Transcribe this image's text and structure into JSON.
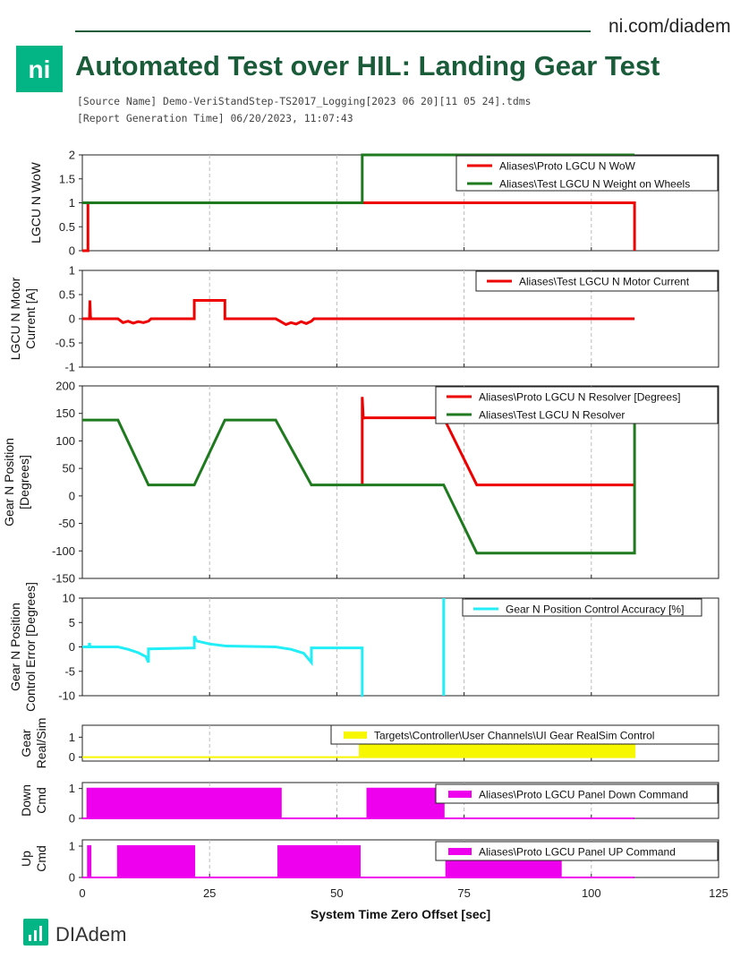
{
  "header": {
    "site": "ni.com/diadem",
    "logo_text": "ni",
    "title": "Automated Test over HIL: Landing Gear Test",
    "source_name": "[Source Name] Demo-VeriStandStep-TS2017_Logging[2023 06 20][11 05 24].tdms",
    "report_time": "[Report Generation Time] 06/20/2023, 11:07:43"
  },
  "footer": {
    "brand": "DIAdem"
  },
  "colors": {
    "brand_green": "#1a5c3a",
    "logo_green": "#03b585",
    "red": "#ee0000",
    "green": "#1f7a1f",
    "cyan": "#22eef7",
    "yellow": "#f7f700",
    "magenta": "#ee00ee"
  },
  "chart_data": [
    {
      "type": "line",
      "ylabel": "LGCU N WoW",
      "ylim": [
        0,
        2
      ],
      "yticks": [
        0,
        0.5,
        1,
        1.5,
        2
      ],
      "xlim": [
        0,
        125
      ],
      "series": [
        {
          "name": "Aliases\\Proto LGCU N WoW",
          "color": "#ee0000",
          "x": [
            0,
            1.1,
            1.1,
            108.5,
            108.5
          ],
          "y": [
            0,
            0,
            1,
            1,
            0
          ]
        },
        {
          "name": "Aliases\\Test LGCU N Weight on Wheels",
          "color": "#1f7a1f",
          "x": [
            0,
            55,
            55,
            108.5
          ],
          "y": [
            1,
            1,
            2,
            2
          ]
        }
      ]
    },
    {
      "type": "line",
      "ylabel": "LGCU N Motor Current [A]",
      "ylim": [
        -1,
        1
      ],
      "yticks": [
        -1,
        -0.5,
        0,
        0.5,
        1
      ],
      "xlim": [
        0,
        125
      ],
      "series": [
        {
          "name": "Aliases\\Test LGCU N Motor Current",
          "color": "#ee0000",
          "x": [
            0,
            1.4,
            1.5,
            1.6,
            1.7,
            2,
            7,
            8,
            9,
            10,
            11,
            12,
            13,
            13.5,
            22,
            22,
            28,
            28,
            38,
            39,
            40,
            41,
            42,
            43,
            44,
            45,
            45.5,
            108.5
          ],
          "y": [
            0,
            0,
            0.38,
            0.05,
            0,
            0,
            0,
            -0.08,
            -0.05,
            -0.09,
            -0.06,
            -0.08,
            -0.05,
            0,
            0,
            0.38,
            0.38,
            0,
            0,
            -0.06,
            -0.12,
            -0.08,
            -0.11,
            -0.06,
            -0.1,
            -0.05,
            0,
            0
          ]
        }
      ]
    },
    {
      "type": "line",
      "ylabel": "Gear N Position [Degrees]",
      "ylim": [
        -150,
        200
      ],
      "yticks": [
        -150,
        -100,
        -50,
        0,
        50,
        100,
        150,
        200
      ],
      "xlim": [
        0,
        125
      ],
      "series": [
        {
          "name": "Aliases\\Proto LGCU N Resolver [Degrees]",
          "color": "#ee0000",
          "x": [
            55,
            55,
            55.2,
            55.3,
            71,
            77.5,
            108.5
          ],
          "y": [
            20,
            180,
            140,
            142,
            142,
            20,
            20
          ]
        },
        {
          "name": "Aliases\\Test LGCU N Resolver",
          "color": "#1f7a1f",
          "x": [
            0,
            7,
            13,
            22,
            28,
            38,
            45,
            71,
            77.5,
            108.5,
            108.5
          ],
          "y": [
            138,
            138,
            20,
            20,
            138,
            138,
            20,
            20,
            -104,
            -104,
            138
          ]
        }
      ]
    },
    {
      "type": "line",
      "ylabel": "Gear N Position Control Error [Degrees]",
      "ylim": [
        -10,
        10
      ],
      "yticks": [
        -10,
        -5,
        0,
        5,
        10
      ],
      "xlim": [
        0,
        125
      ],
      "series": [
        {
          "name": "Gear N Position Control Accuracy [%]",
          "color": "#22eef7",
          "x": [
            0,
            1.3,
            1.4,
            1.5,
            2,
            7,
            9,
            11,
            12.5,
            13,
            13,
            22,
            22,
            22.5,
            25,
            28,
            38,
            41,
            43.5,
            45,
            45,
            55,
            55,
            55.1
          ],
          "y": [
            0,
            0,
            0.8,
            0,
            0,
            0,
            -0.5,
            -1.2,
            -2,
            -3.2,
            -0.4,
            -0.2,
            2.2,
            1.2,
            0.6,
            0.2,
            0,
            -0.5,
            -1.3,
            -3.2,
            -0.2,
            -0.2,
            -10,
            -10
          ]
        },
        {
          "name": "",
          "color": "#22eef7",
          "x": [
            71,
            71
          ],
          "y": [
            -10,
            10
          ]
        }
      ]
    },
    {
      "type": "area",
      "ylabel": "Gear Real/Sim",
      "ylim": [
        -0.2,
        1.6
      ],
      "yticks": [
        0,
        1
      ],
      "xlim": [
        0,
        125
      ],
      "series": [
        {
          "name": "Targets\\Controller\\User Channels\\UI Gear RealSim Control",
          "color": "#f7f700",
          "x": [
            0,
            54.5,
            54.5,
            108.5,
            108.5
          ],
          "y": [
            0,
            0,
            1,
            1,
            0
          ]
        }
      ]
    },
    {
      "type": "area",
      "ylabel": "Down Cmd",
      "ylim": [
        0,
        1.2
      ],
      "yticks": [
        0,
        1
      ],
      "xlim": [
        0,
        125
      ],
      "series": [
        {
          "name": "Aliases\\Proto LGCU Panel Down Command",
          "color": "#ee00ee",
          "x": [
            0,
            1,
            1,
            39,
            39,
            56,
            56,
            71,
            71,
            108.5
          ],
          "y": [
            0,
            0,
            1,
            1,
            0,
            0,
            1,
            1,
            0,
            0
          ]
        }
      ]
    },
    {
      "type": "area",
      "ylabel": "Up Cmd",
      "ylim": [
        0,
        1.2
      ],
      "yticks": [
        0,
        1
      ],
      "xlim": [
        0,
        125
      ],
      "xticks": [
        0,
        25,
        50,
        75,
        100,
        125
      ],
      "xlabel": "System Time Zero Offset [sec]",
      "series": [
        {
          "name": "Aliases\\Proto LGCU Panel UP Command",
          "color": "#ee00ee",
          "x": [
            0,
            1.1,
            1.1,
            1.6,
            1.6,
            7,
            7,
            22,
            22,
            38.5,
            38.5,
            54.5,
            54.5,
            71.5,
            71.5,
            94,
            94,
            108.5
          ],
          "y": [
            0,
            0,
            1,
            1,
            0,
            0,
            1,
            1,
            0,
            0,
            1,
            1,
            0,
            0,
            1,
            1,
            0,
            0
          ]
        }
      ]
    }
  ]
}
